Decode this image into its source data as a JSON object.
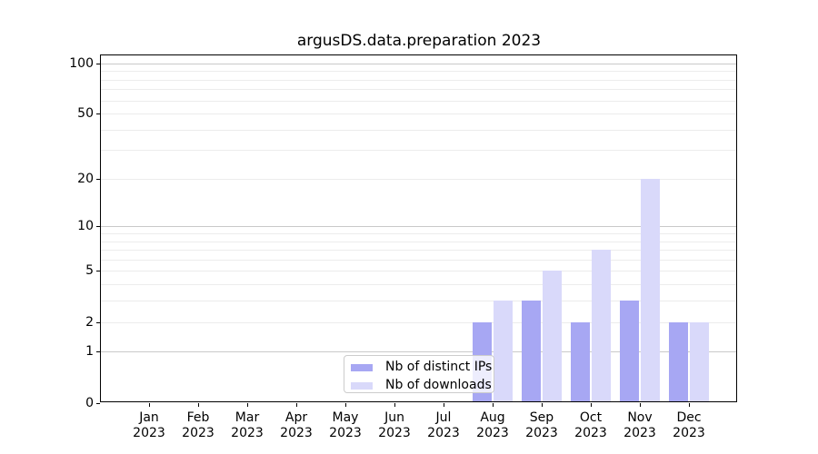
{
  "title": "argusDS.data.preparation 2023",
  "chart_data": {
    "type": "bar",
    "title": "argusDS.data.preparation 2023",
    "categories": [
      "Jan",
      "Feb",
      "Mar",
      "Apr",
      "May",
      "Jun",
      "Jul",
      "Aug",
      "Sep",
      "Oct",
      "Nov",
      "Dec"
    ],
    "category_year": "2023",
    "series": [
      {
        "name": "Nb of distinct IPs",
        "color": "#a7a7f3",
        "values": [
          0,
          0,
          0,
          0,
          0,
          0,
          0,
          2,
          3,
          2,
          3,
          2
        ]
      },
      {
        "name": "Nb of downloads",
        "color": "#d9d9fa",
        "values": [
          0,
          0,
          0,
          0,
          0,
          0,
          0,
          3,
          5,
          7,
          20,
          2
        ]
      }
    ],
    "xlabel": "",
    "ylabel": "",
    "yscale": "log1p",
    "ylim": [
      0,
      113
    ],
    "yticks": [
      0,
      1,
      2,
      5,
      10,
      20,
      50,
      100
    ],
    "grid_minor": [
      2,
      3,
      4,
      5,
      6,
      7,
      8,
      9,
      20,
      30,
      40,
      50,
      60,
      70,
      80,
      90
    ],
    "grid_major": [
      1,
      10,
      100
    ],
    "grid": "on",
    "legend_position": "lower center-left inside plot",
    "colors": {
      "spine": "#000000",
      "grid_minor": "#ececec",
      "grid_major": "#c9c9c9",
      "legend_border": "#cccccc",
      "text": "#000000"
    }
  }
}
